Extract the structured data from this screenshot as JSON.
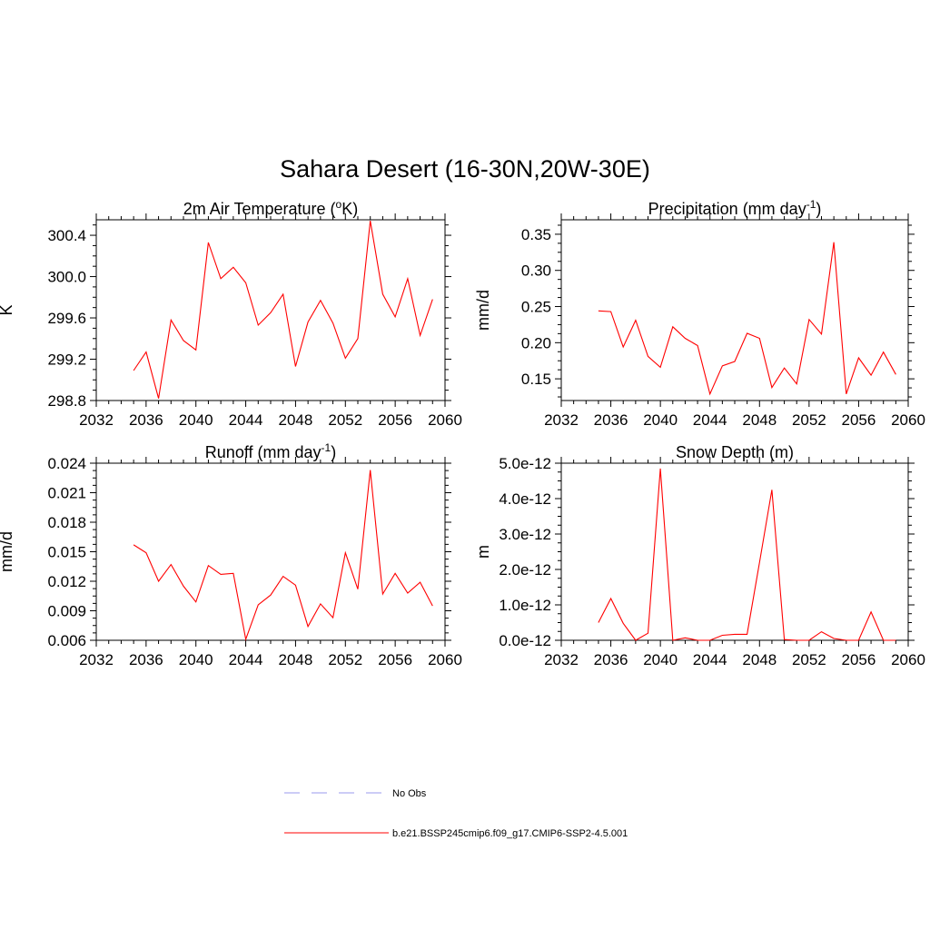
{
  "title": "Sahara Desert (16-30N,20W-30E)",
  "colors": {
    "model_line": "#ff0000",
    "obs_line": "#9999ee",
    "axis": "#000000",
    "background": "#ffffff"
  },
  "legend": {
    "items": [
      {
        "label": "No Obs",
        "style": "dashed",
        "color": "#9999ee"
      },
      {
        "label": "b.e21.BSSP245cmip6.f09_g17.CMIP6-SSP2-4.5.001",
        "style": "solid",
        "color": "#ff0000"
      }
    ]
  },
  "chart_data": [
    {
      "type": "line",
      "title": "2m Air Temperature",
      "title_unit": "(°K)",
      "ylabel": "K",
      "xlim": [
        2032,
        2060
      ],
      "xticks": [
        "2032",
        "2036",
        "2040",
        "2044",
        "2048",
        "2052",
        "2056",
        "2060"
      ],
      "ylim": [
        298.8,
        300.55
      ],
      "yticks": [
        298.8,
        299.2,
        299.6,
        300.0,
        300.4
      ],
      "ytick_labels": [
        "298.8",
        "299.2",
        "299.6",
        "300.0",
        "300.4"
      ],
      "x": [
        2035,
        2036,
        2037,
        2038,
        2039,
        2040,
        2041,
        2042,
        2043,
        2044,
        2045,
        2046,
        2047,
        2048,
        2049,
        2050,
        2051,
        2052,
        2053,
        2054,
        2055,
        2056,
        2057,
        2058,
        2059
      ],
      "series": [
        {
          "values": [
            299.09,
            299.27,
            298.82,
            299.58,
            299.38,
            299.29,
            300.33,
            299.98,
            300.09,
            299.94,
            299.53,
            299.65,
            299.83,
            299.13,
            299.56,
            299.77,
            299.55,
            299.21,
            299.4,
            300.54,
            299.83,
            299.61,
            299.98,
            299.43,
            299.78
          ]
        }
      ]
    },
    {
      "type": "line",
      "title": "Precipitation",
      "title_unit": "(mm day-1)",
      "ylabel": "mm/d",
      "xlim": [
        2032,
        2060
      ],
      "xticks": [
        "2032",
        "2036",
        "2040",
        "2044",
        "2048",
        "2052",
        "2056",
        "2060"
      ],
      "ylim": [
        0.12,
        0.37
      ],
      "yticks": [
        0.15,
        0.2,
        0.25,
        0.3,
        0.35
      ],
      "ytick_labels": [
        "0.15",
        "0.20",
        "0.25",
        "0.30",
        "0.35"
      ],
      "x": [
        2035,
        2036,
        2037,
        2038,
        2039,
        2040,
        2041,
        2042,
        2043,
        2044,
        2045,
        2046,
        2047,
        2048,
        2049,
        2050,
        2051,
        2052,
        2053,
        2054,
        2055,
        2056,
        2057,
        2058,
        2059
      ],
      "series": [
        {
          "values": [
            0.244,
            0.243,
            0.194,
            0.231,
            0.181,
            0.166,
            0.222,
            0.206,
            0.196,
            0.129,
            0.168,
            0.174,
            0.213,
            0.206,
            0.138,
            0.165,
            0.143,
            0.232,
            0.212,
            0.339,
            0.129,
            0.179,
            0.155,
            0.187,
            0.156
          ]
        }
      ]
    },
    {
      "type": "line",
      "title": "Runoff",
      "title_unit": "(mm day-1)",
      "ylabel": "mm/d",
      "xlim": [
        2032,
        2060
      ],
      "xticks": [
        "2032",
        "2036",
        "2040",
        "2044",
        "2048",
        "2052",
        "2056",
        "2060"
      ],
      "ylim": [
        0.006,
        0.024
      ],
      "yticks": [
        0.006,
        0.009,
        0.012,
        0.015,
        0.018,
        0.021,
        0.024
      ],
      "ytick_labels": [
        "0.006",
        "0.009",
        "0.012",
        "0.015",
        "0.018",
        "0.021",
        "0.024"
      ],
      "x": [
        2035,
        2036,
        2037,
        2038,
        2039,
        2040,
        2041,
        2042,
        2043,
        2044,
        2045,
        2046,
        2047,
        2048,
        2049,
        2050,
        2051,
        2052,
        2053,
        2054,
        2055,
        2056,
        2057,
        2058,
        2059
      ],
      "series": [
        {
          "values": [
            0.0157,
            0.0149,
            0.012,
            0.0137,
            0.0115,
            0.0099,
            0.0136,
            0.0127,
            0.0128,
            0.0061,
            0.0096,
            0.0106,
            0.0125,
            0.0116,
            0.0074,
            0.0097,
            0.0083,
            0.0149,
            0.0112,
            0.0233,
            0.0107,
            0.0128,
            0.0108,
            0.0119,
            0.0095
          ]
        }
      ]
    },
    {
      "type": "line",
      "title": "Snow Depth",
      "title_unit": "(m)",
      "ylabel": "m",
      "xlim": [
        2032,
        2060
      ],
      "xticks": [
        "2032",
        "2036",
        "2040",
        "2044",
        "2048",
        "2052",
        "2056",
        "2060"
      ],
      "ylim": [
        0,
        5e-12
      ],
      "yticks": [
        0,
        1e-12,
        2e-12,
        3e-12,
        4e-12,
        5e-12
      ],
      "ytick_labels": [
        "0.0e-12",
        "1.0e-12",
        "2.0e-12",
        "3.0e-12",
        "4.0e-12",
        "5.0e-12"
      ],
      "x": [
        2035,
        2036,
        2037,
        2038,
        2039,
        2040,
        2041,
        2042,
        2043,
        2044,
        2045,
        2046,
        2047,
        2048,
        2049,
        2050,
        2051,
        2052,
        2053,
        2054,
        2055,
        2056,
        2057,
        2058,
        2059
      ],
      "series": [
        {
          "values": [
            5e-13,
            1.18e-12,
            4.8e-13,
            0.0,
            2e-13,
            4.85e-12,
            0.0,
            7e-14,
            0.0,
            0.0,
            1.4e-13,
            1.7e-13,
            1.7e-13,
            2.2e-12,
            4.25e-12,
            2e-14,
            0.0,
            0.0,
            2.4e-13,
            5e-14,
            0.0,
            0.0,
            8e-13,
            0.0,
            0.0
          ]
        }
      ]
    }
  ]
}
